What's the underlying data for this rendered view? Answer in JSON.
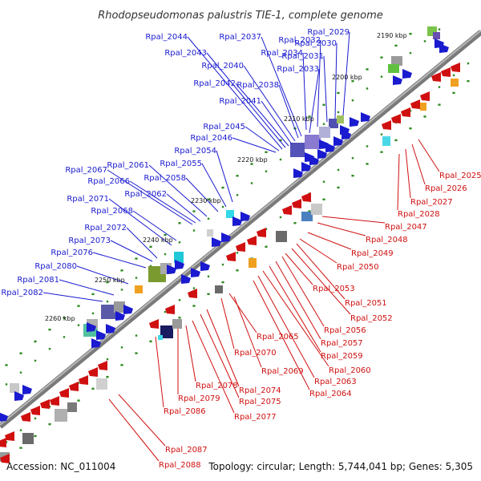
{
  "header": {
    "title": "Rhodopseudomonas palustris TIE-1, complete genome"
  },
  "footer": {
    "accession": "Accession: NC_011004",
    "summary": "Topology: circular; Length: 5,744,041 bp; Genes: 5,305"
  },
  "colors": {
    "forward_gene": "#1a1ad0",
    "reverse_gene": "#d01010",
    "backbone": "#7a7a7a",
    "tick": "#2e8b22"
  },
  "kbp_ticks": [
    "2190 kbp",
    "2200 kbp",
    "2210 kbp",
    "2220 kbp",
    "2230 kbp",
    "2240 kbp",
    "2250 kbp",
    "2260 kbp"
  ],
  "forward_genes": [
    "Rpal_2029",
    "Rpal_2030",
    "Rpal_2031",
    "Rpal_2032",
    "Rpal_2033",
    "Rpal_2034",
    "Rpal_2037",
    "Rpal_2038",
    "Rpal_2040",
    "Rpal_2041",
    "Rpal_2042",
    "Rpal_2043",
    "Rpal_2044",
    "Rpal_2045",
    "Rpal_2046",
    "Rpal_2054",
    "Rpal_2055",
    "Rpal_2058",
    "Rpal_2061",
    "Rpal_2062",
    "Rpal_2066",
    "Rpal_2067",
    "Rpal_2068",
    "Rpal_2071",
    "Rpal_2072",
    "Rpal_2073",
    "Rpal_2076",
    "Rpal_2080",
    "Rpal_2081",
    "Rpal_2082"
  ],
  "reverse_genes": [
    "Rpal_2025",
    "Rpal_2026",
    "Rpal_2027",
    "Rpal_2028",
    "Rpal_2047",
    "Rpal_2048",
    "Rpal_2049",
    "Rpal_2050",
    "Rpal_2051",
    "Rpal_2052",
    "Rpal_2053",
    "Rpal_2056",
    "Rpal_2057",
    "Rpal_2059",
    "Rpal_2060",
    "Rpal_2063",
    "Rpal_2064",
    "Rpal_2065",
    "Rpal_2069",
    "Rpal_2070",
    "Rpal_2074",
    "Rpal_2075",
    "Rpal_2077",
    "Rpal_2078",
    "Rpal_2079",
    "Rpal_2086",
    "Rpal_2087",
    "Rpal_2088"
  ]
}
